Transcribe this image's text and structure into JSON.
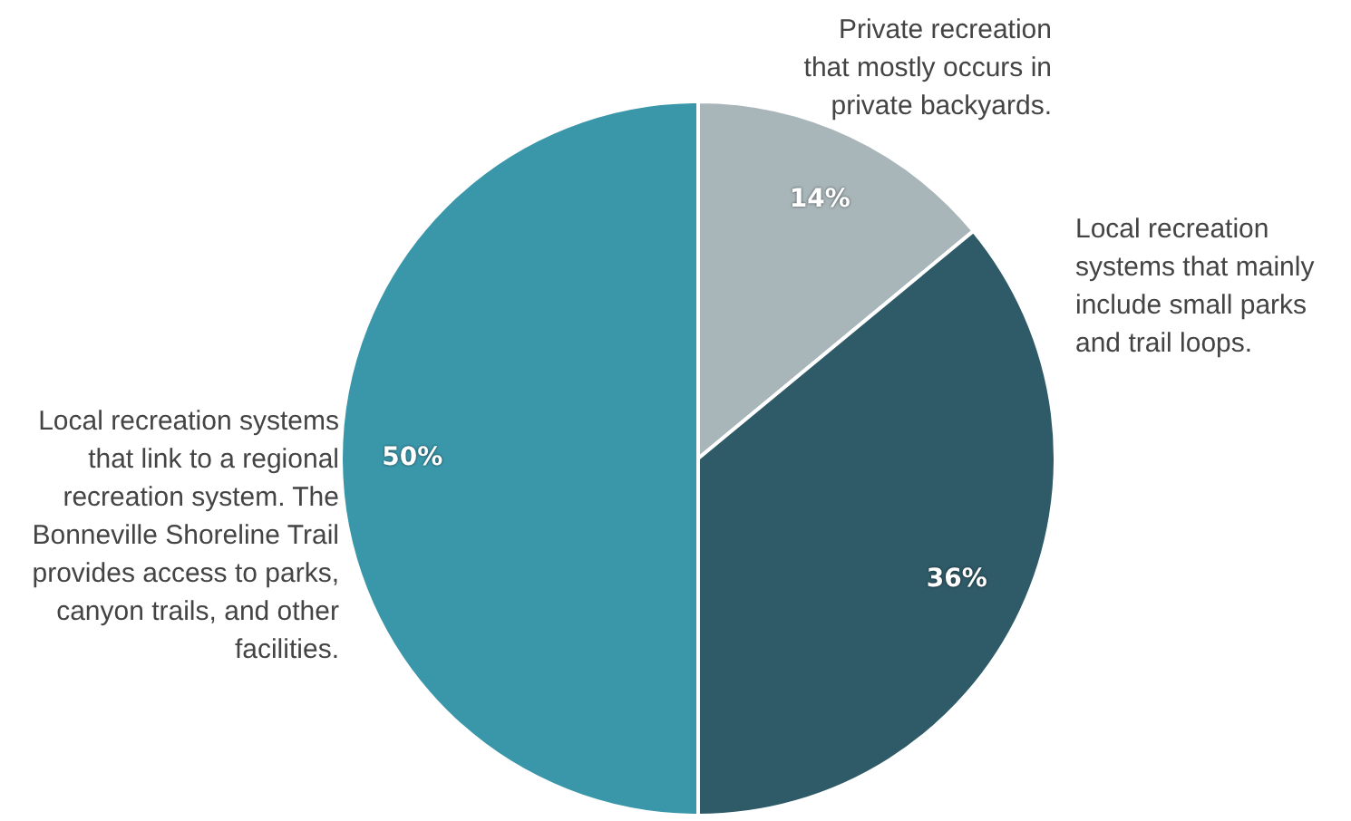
{
  "chart_data": {
    "type": "pie",
    "categories": [
      "Private recreation that mostly occurs in private backyards.",
      "Local recreation systems that mainly include small parks and trail loops.",
      "Local recreation systems that link to a regional recreation system. The Bonneville Shoreline Trail provides access to parks, canyon trails, and other facilities."
    ],
    "values": [
      14,
      36,
      50
    ],
    "colors": [
      "#a9b6b9",
      "#2f5a68",
      "#3a97aa"
    ],
    "value_labels": [
      "14%",
      "36%",
      "50%"
    ],
    "legend": false
  }
}
